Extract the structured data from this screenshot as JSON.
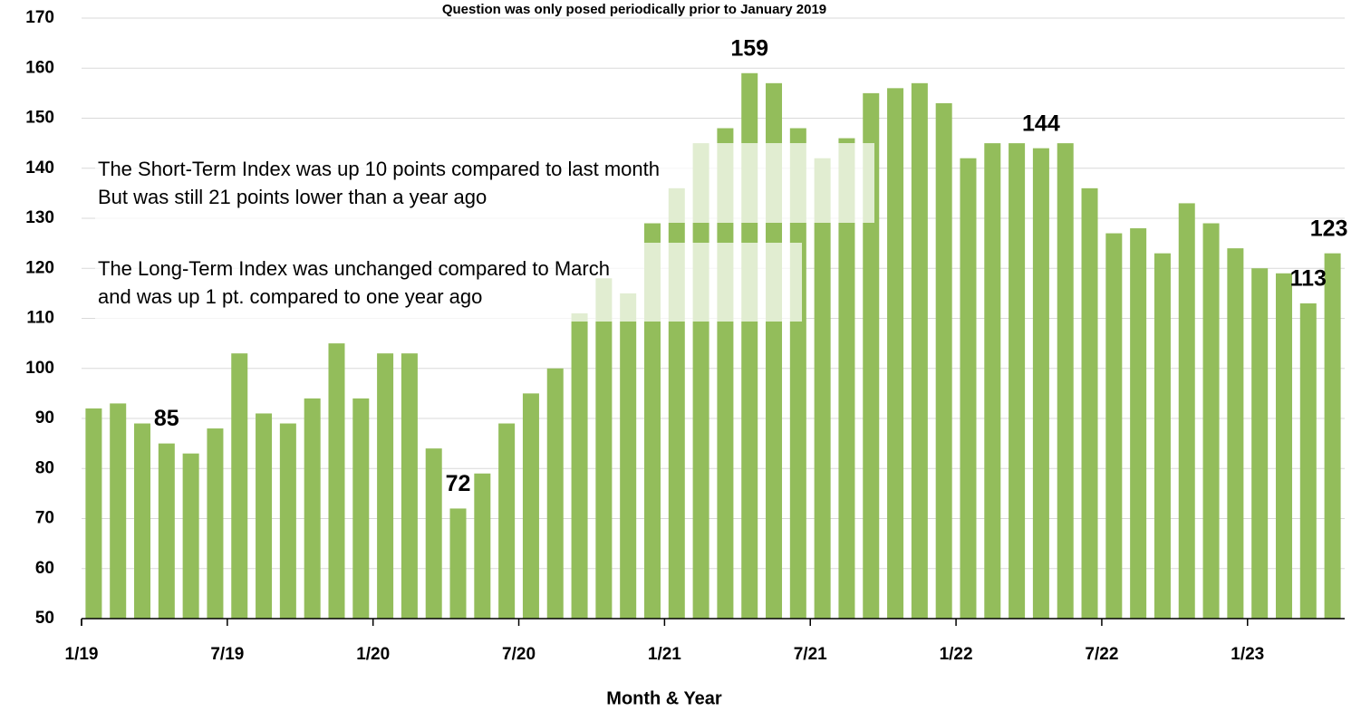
{
  "chart_data": {
    "type": "bar",
    "title": "Question was only posed periodically prior to January 2019",
    "x_label": "Month & Year",
    "annotations": [
      [
        "The Short-Term Index was up 10 points compared to last month",
        "But was still 21 points lower than a year ago"
      ],
      [
        "The Long-Term Index was unchanged compared to March",
        "and was up 1 pt. compared to one year ago"
      ]
    ],
    "categories": [
      "1/19",
      null,
      null,
      null,
      null,
      null,
      "7/19",
      null,
      null,
      null,
      null,
      null,
      "1/20",
      null,
      null,
      null,
      null,
      null,
      "7/20",
      null,
      null,
      null,
      null,
      null,
      "1/21",
      null,
      null,
      null,
      null,
      null,
      "7/21",
      null,
      null,
      null,
      null,
      null,
      "1/22",
      null,
      null,
      null,
      null,
      null,
      "7/22",
      null,
      null,
      null,
      null,
      null,
      "1/23",
      null,
      null,
      null
    ],
    "values": [
      92,
      93,
      89,
      85,
      83,
      88,
      103,
      91,
      89,
      94,
      105,
      94,
      103,
      103,
      84,
      72,
      79,
      89,
      95,
      100,
      111,
      118,
      115,
      129,
      136,
      145,
      148,
      159,
      157,
      148,
      142,
      146,
      155,
      156,
      157,
      153,
      142,
      145,
      145,
      144,
      145,
      136,
      127,
      128,
      123,
      133,
      129,
      124,
      120,
      119,
      113,
      123
    ],
    "value_labels": [
      null,
      null,
      null,
      "85",
      null,
      null,
      null,
      null,
      null,
      null,
      null,
      null,
      null,
      null,
      null,
      "72",
      null,
      null,
      null,
      null,
      null,
      null,
      null,
      null,
      null,
      null,
      null,
      "159",
      null,
      null,
      null,
      null,
      null,
      null,
      null,
      null,
      null,
      null,
      null,
      "144",
      null,
      null,
      null,
      null,
      null,
      null,
      null,
      null,
      null,
      null,
      "113",
      "123"
    ],
    "color": "#93bd5b",
    "ylim": [
      50,
      170
    ],
    "yticks": [
      50,
      60,
      70,
      80,
      90,
      100,
      110,
      120,
      130,
      140,
      150,
      160,
      170
    ],
    "grid": true
  }
}
